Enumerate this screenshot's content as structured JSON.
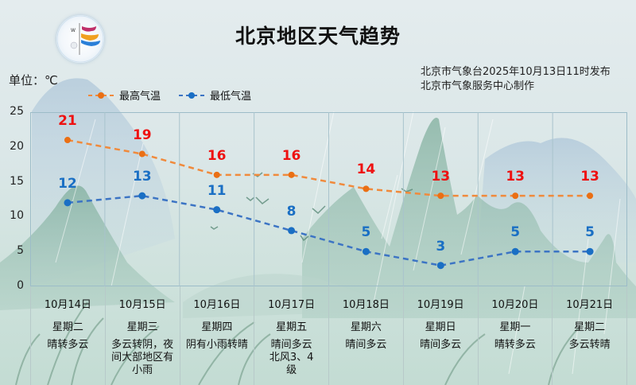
{
  "header": {
    "title": "北京地区天气趋势",
    "unit_label": "单位：℃",
    "publisher_line1": "北京市气象台2025年10月13日11时发布",
    "publisher_line2": "北京市气象服务中心制作",
    "logo_icon": "meteorological-service-logo"
  },
  "legend": {
    "high": {
      "label": "最高气温",
      "color": "#f08a3c"
    },
    "low": {
      "label": "最低气温",
      "color": "#3c74c4"
    }
  },
  "y_axis": {
    "ticks": [
      "25",
      "20",
      "15",
      "10",
      "5",
      "0"
    ]
  },
  "days": [
    {
      "date": "10月14日",
      "weekday": "星期二",
      "weather": "晴转多云",
      "high": "21",
      "low": "12"
    },
    {
      "date": "10月15日",
      "weekday": "星期三",
      "weather": "多云转阴，夜间大部地区有小雨",
      "high": "19",
      "low": "13"
    },
    {
      "date": "10月16日",
      "weekday": "星期四",
      "weather": "阴有小雨转晴",
      "high": "16",
      "low": "11"
    },
    {
      "date": "10月17日",
      "weekday": "星期五",
      "weather": "晴间多云北风3、4级",
      "high": "16",
      "low": "8"
    },
    {
      "date": "10月18日",
      "weekday": "星期六",
      "weather": "晴间多云",
      "high": "14",
      "low": "5"
    },
    {
      "date": "10月19日",
      "weekday": "星期日",
      "weather": "晴间多云",
      "high": "13",
      "low": "3"
    },
    {
      "date": "10月20日",
      "weekday": "星期一",
      "weather": "晴转多云",
      "high": "13",
      "low": "5"
    },
    {
      "date": "10月21日",
      "weekday": "星期二",
      "weather": "多云转晴",
      "high": "13",
      "low": "5"
    }
  ],
  "chart_data": {
    "type": "line",
    "title": "北京地区天气趋势",
    "xlabel": "",
    "ylabel": "单位：℃",
    "ylim": [
      0,
      25
    ],
    "yticks": [
      0,
      5,
      10,
      15,
      20,
      25
    ],
    "grid": true,
    "legend_position": "top-left",
    "categories": [
      "10月14日",
      "10月15日",
      "10月16日",
      "10月17日",
      "10月18日",
      "10月19日",
      "10月20日",
      "10月21日"
    ],
    "series": [
      {
        "name": "最高气温",
        "values": [
          21,
          19,
          16,
          16,
          14,
          13,
          13,
          13
        ],
        "color": "#f08a3c",
        "label_color": "#ee1111",
        "style": "dashed"
      },
      {
        "name": "最低气温",
        "values": [
          12,
          13,
          11,
          8,
          5,
          3,
          5,
          5
        ],
        "color": "#3c74c4",
        "label_color": "#1a6fc4",
        "style": "dashed"
      }
    ],
    "annotations": [
      "北京市气象台2025年10月13日11时发布",
      "北京市气象服务中心制作"
    ]
  }
}
